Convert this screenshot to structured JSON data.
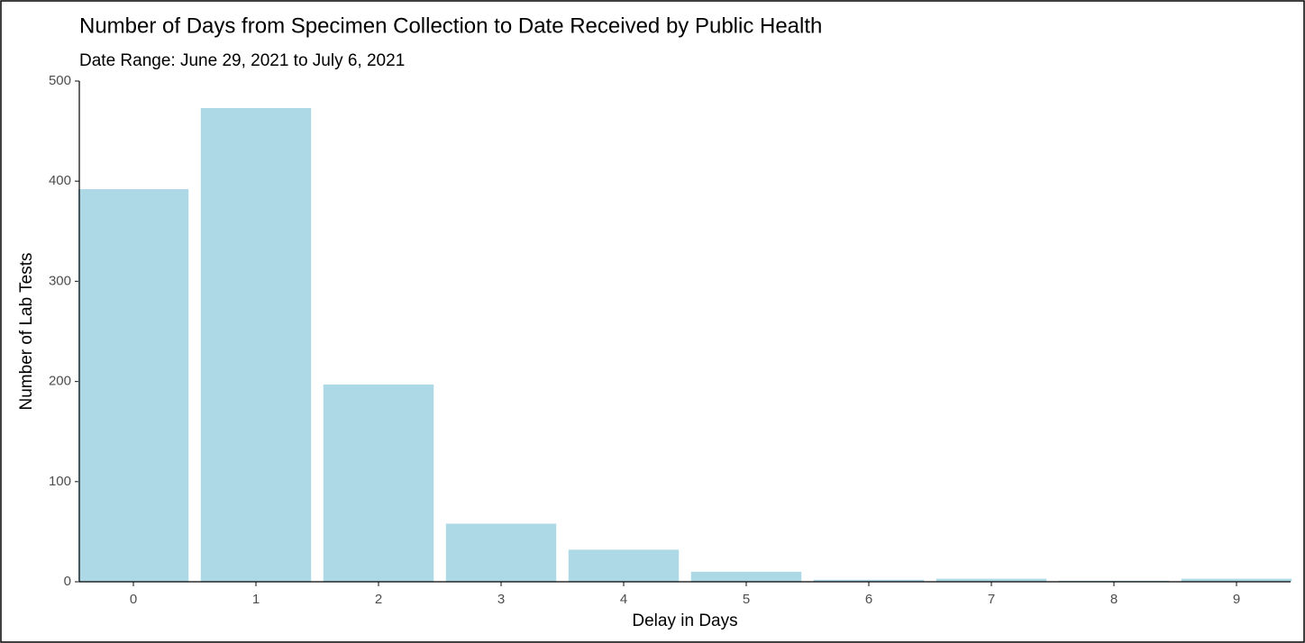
{
  "chart_data": {
    "type": "bar",
    "title": "Number of Days from Specimen Collection to Date Received by Public Health",
    "subtitle": "Date Range: June 29, 2021 to July 6, 2021",
    "x_label": "Delay in Days",
    "y_label": "Number of Lab Tests",
    "categories": [
      "0",
      "1",
      "2",
      "3",
      "4",
      "5",
      "6",
      "7",
      "8",
      "9"
    ],
    "values": [
      392,
      473,
      197,
      58,
      32,
      10,
      2,
      3,
      1,
      3
    ],
    "color": "#add8e6",
    "ylim": [
      0,
      500
    ],
    "yticks": [
      0,
      100,
      200,
      300,
      400,
      500
    ],
    "grid": false
  }
}
